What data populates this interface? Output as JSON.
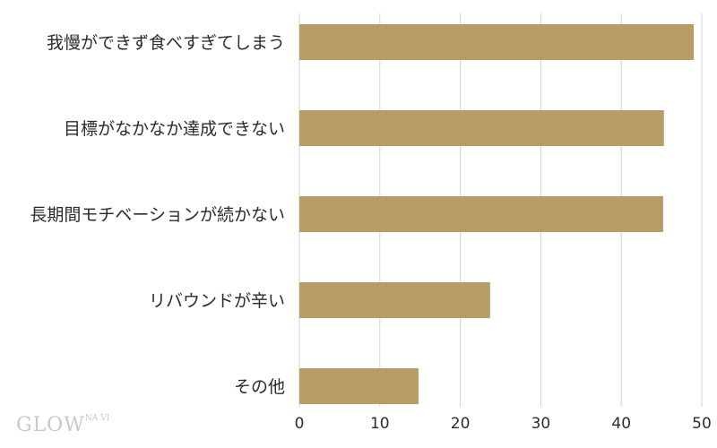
{
  "chart_data": {
    "type": "bar",
    "orientation": "horizontal",
    "categories": [
      "我慢ができず食べすぎてしまう",
      "目標がなかなか達成できない",
      "長期間モチベーションが続かない",
      "リバウンドが辛い",
      "その他"
    ],
    "values": [
      49,
      45.3,
      45.2,
      23.7,
      14.8
    ],
    "xlim": [
      0,
      50
    ],
    "xticks": [
      0,
      10,
      20,
      30,
      40,
      50
    ],
    "title": "",
    "xlabel": "",
    "ylabel": "",
    "grid": "vertical",
    "bar_color": "#b89c66",
    "grid_color": "#d3d3d3"
  },
  "watermark": {
    "main": "GLOW",
    "sub": "NA VI"
  }
}
